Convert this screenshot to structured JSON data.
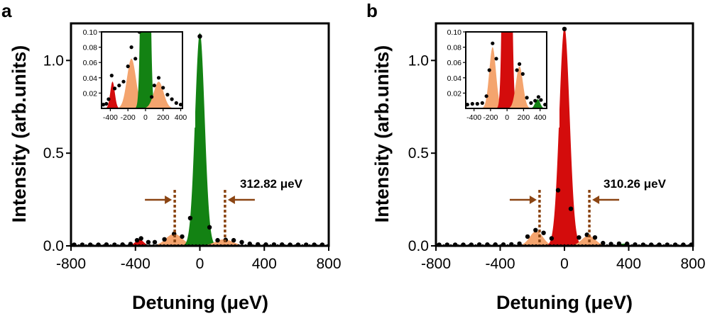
{
  "chart_data": [
    {
      "panel": "a",
      "type": "area",
      "xlabel": "Detuning (μeV)",
      "ylabel": "Intensity (arb.units)",
      "xlim": [
        -800,
        800
      ],
      "ylim": [
        0,
        1.2
      ],
      "xticks": [
        "-800",
        "-400",
        "0",
        "400",
        "800"
      ],
      "yticks": [
        "0.0",
        "0.5",
        "1.0"
      ],
      "peaks": [
        {
          "center": -375,
          "amplitude": 0.035,
          "fwhm": 60,
          "color": "#d40c0c"
        },
        {
          "center": -160,
          "amplitude": 0.065,
          "fwhm": 120,
          "color": "#f4a46e"
        },
        {
          "center": 0,
          "amplitude": 1.15,
          "fwhm": 70,
          "color": "#138213"
        },
        {
          "center": 150,
          "amplitude": 0.035,
          "fwhm": 130,
          "color": "#f4a46e"
        }
      ],
      "points": [
        [
          -780,
          0.006
        ],
        [
          -730,
          0.006
        ],
        [
          -680,
          0.006
        ],
        [
          -630,
          0.006
        ],
        [
          -580,
          0.007
        ],
        [
          -530,
          0.006
        ],
        [
          -480,
          0.007
        ],
        [
          -430,
          0.01
        ],
        [
          -390,
          0.03
        ],
        [
          -365,
          0.04
        ],
        [
          -320,
          0.02
        ],
        [
          -280,
          0.02
        ],
        [
          -220,
          0.035
        ],
        [
          -160,
          0.065
        ],
        [
          -110,
          0.05
        ],
        [
          -60,
          0.15
        ],
        [
          0,
          1.13
        ],
        [
          60,
          0.1
        ],
        [
          110,
          0.03
        ],
        [
          160,
          0.032
        ],
        [
          210,
          0.03
        ],
        [
          260,
          0.02
        ],
        [
          310,
          0.011
        ],
        [
          360,
          0.008
        ],
        [
          410,
          0.007
        ],
        [
          460,
          0.007
        ],
        [
          510,
          0.007
        ],
        [
          560,
          0.006
        ],
        [
          610,
          0.006
        ],
        [
          660,
          0.006
        ],
        [
          710,
          0.006
        ],
        [
          760,
          0.006
        ]
      ],
      "markers": [
        -156,
        156
      ],
      "annotation": "312.82 μeV",
      "inset": {
        "xlim": [
          -500,
          420
        ],
        "ylim": [
          0,
          0.1
        ],
        "xticks": [
          "-400",
          "-200",
          "0",
          "200",
          "400"
        ],
        "yticks": [
          "0.02",
          "0.04",
          "0.06",
          "0.08",
          "0.10"
        ],
        "points": [
          [
            -480,
            0.005
          ],
          [
            -445,
            0.006
          ],
          [
            -420,
            0.012
          ],
          [
            -385,
            0.043
          ],
          [
            -350,
            0.026
          ],
          [
            -300,
            0.03
          ],
          [
            -250,
            0.035
          ],
          [
            -200,
            0.055
          ],
          [
            -160,
            0.08
          ],
          [
            -115,
            0.065
          ],
          [
            -70,
            0.1
          ],
          [
            70,
            0.015
          ],
          [
            100,
            0.03
          ],
          [
            150,
            0.04
          ],
          [
            200,
            0.027
          ],
          [
            250,
            0.018
          ],
          [
            300,
            0.012
          ],
          [
            350,
            0.007
          ],
          [
            400,
            0.005
          ]
        ]
      }
    },
    {
      "panel": "b",
      "type": "area",
      "xlabel": "Detuning (μeV)",
      "ylabel": "Intensity (arb.units)",
      "xlim": [
        -800,
        800
      ],
      "ylim": [
        0,
        1.2
      ],
      "xticks": [
        "-800",
        "-400",
        "0",
        "400",
        "800"
      ],
      "yticks": [
        "0.0",
        "0.5",
        "1.0"
      ],
      "peaks": [
        {
          "center": -175,
          "amplitude": 0.08,
          "fwhm": 95,
          "color": "#f4a46e"
        },
        {
          "center": 0,
          "amplitude": 1.18,
          "fwhm": 75,
          "color": "#d40c0c"
        },
        {
          "center": 150,
          "amplitude": 0.055,
          "fwhm": 100,
          "color": "#f4a46e"
        },
        {
          "center": 370,
          "amplitude": 0.012,
          "fwhm": 70,
          "color": "#138213"
        }
      ],
      "points": [
        [
          -780,
          0.006
        ],
        [
          -730,
          0.006
        ],
        [
          -680,
          0.006
        ],
        [
          -630,
          0.006
        ],
        [
          -580,
          0.006
        ],
        [
          -530,
          0.007
        ],
        [
          -480,
          0.007
        ],
        [
          -430,
          0.007
        ],
        [
          -380,
          0.007
        ],
        [
          -330,
          0.008
        ],
        [
          -280,
          0.012
        ],
        [
          -230,
          0.05
        ],
        [
          -180,
          0.085
        ],
        [
          -130,
          0.07
        ],
        [
          -80,
          0.04
        ],
        [
          -40,
          0.3
        ],
        [
          0,
          1.17
        ],
        [
          40,
          0.2
        ],
        [
          90,
          0.045
        ],
        [
          140,
          0.06
        ],
        [
          190,
          0.045
        ],
        [
          240,
          0.015
        ],
        [
          290,
          0.01
        ],
        [
          340,
          0.012
        ],
        [
          390,
          0.011
        ],
        [
          440,
          0.007
        ],
        [
          490,
          0.006
        ],
        [
          540,
          0.006
        ],
        [
          590,
          0.006
        ],
        [
          640,
          0.006
        ],
        [
          690,
          0.006
        ],
        [
          740,
          0.006
        ],
        [
          790,
          0.006
        ]
      ],
      "markers": [
        -155,
        155
      ],
      "annotation": "310.26 μeV",
      "inset": {
        "xlim": [
          -500,
          480
        ],
        "ylim": [
          0,
          0.1
        ],
        "xticks": [
          "-400",
          "-200",
          "0",
          "200",
          "400"
        ],
        "yticks": [
          "0.02",
          "0.04",
          "0.06",
          "0.08",
          "0.10"
        ],
        "points": [
          [
            -480,
            0.005
          ],
          [
            -420,
            0.006
          ],
          [
            -360,
            0.006
          ],
          [
            -300,
            0.007
          ],
          [
            -250,
            0.016
          ],
          [
            -215,
            0.05
          ],
          [
            -175,
            0.085
          ],
          [
            -130,
            0.065
          ],
          [
            120,
            0.05
          ],
          [
            150,
            0.058
          ],
          [
            190,
            0.045
          ],
          [
            240,
            0.014
          ],
          [
            290,
            0.007
          ],
          [
            340,
            0.01
          ],
          [
            380,
            0.015
          ],
          [
            410,
            0.011
          ],
          [
            460,
            0.005
          ]
        ]
      }
    }
  ],
  "colors": {
    "axis": "#000000",
    "points": "#000000",
    "marker_line": "#8b4513",
    "arrow": "#8b4513"
  }
}
